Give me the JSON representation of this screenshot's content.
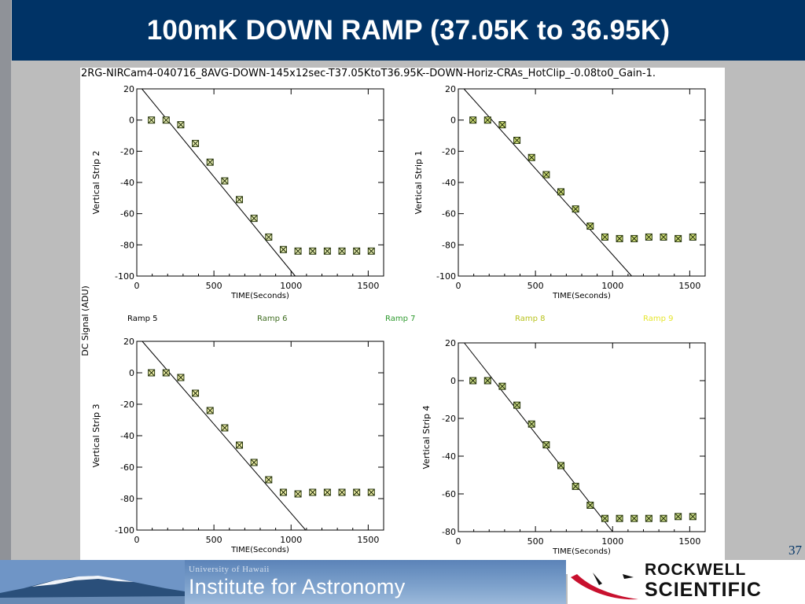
{
  "slide": {
    "title": "100mK DOWN RAMP (37.05K to 36.95K)",
    "page_number": "37"
  },
  "figure": {
    "header": "2RG-NIRCam4-040716_8AVG-DOWN-145x12sec-T37.05KtoT36.95K--DOWN-Horiz-CRAs_HotClip_-0.08to0_Gain-1.",
    "shared_ylabel": "DC Signal (ADU)",
    "legend": [
      {
        "label": "Ramp 5",
        "color": "#000000"
      },
      {
        "label": "Ramp 6",
        "color": "#3d6b1e"
      },
      {
        "label": "Ramp 7",
        "color": "#2e9a2e"
      },
      {
        "label": "Ramp 8",
        "color": "#b8c21c"
      },
      {
        "label": "Ramp 9",
        "color": "#e6e62e"
      }
    ],
    "legend_placement": "center row between panels"
  },
  "chart_data": [
    {
      "type": "scatter",
      "xlabel": "TIME(Seconds)",
      "ylabel": "Vertical Strip 2",
      "xlim": [
        0,
        1600
      ],
      "ylim": [
        -100,
        20
      ],
      "xticks": [
        0,
        500,
        1000,
        1500
      ],
      "yticks": [
        20,
        0,
        -20,
        -40,
        -60,
        -80,
        -100
      ],
      "x": [
        95,
        190,
        285,
        380,
        475,
        570,
        665,
        760,
        855,
        950,
        1045,
        1140,
        1235,
        1330,
        1425,
        1520
      ],
      "y": [
        0,
        0,
        -3,
        -15,
        -27,
        -39,
        -51,
        -63,
        -75,
        -83,
        -84,
        -84,
        -84,
        -84,
        -84,
        -84
      ],
      "fit_line": {
        "x": [
          0,
          1060
        ],
        "y": [
          24,
          -104
        ]
      }
    },
    {
      "type": "scatter",
      "xlabel": "TIME(Seconds)",
      "ylabel": "Vertical Strip 1",
      "xlim": [
        0,
        1600
      ],
      "ylim": [
        -100,
        20
      ],
      "xticks": [
        0,
        500,
        1000,
        1500
      ],
      "yticks": [
        20,
        0,
        -20,
        -40,
        -60,
        -80,
        -100
      ],
      "x": [
        95,
        190,
        285,
        380,
        475,
        570,
        665,
        760,
        855,
        950,
        1045,
        1140,
        1235,
        1330,
        1425,
        1520
      ],
      "y": [
        0,
        0,
        -3,
        -13,
        -24,
        -35,
        -46,
        -57,
        -68,
        -75,
        -76,
        -76,
        -75,
        -75,
        -76,
        -75
      ],
      "fit_line": {
        "x": [
          0,
          1160
        ],
        "y": [
          24,
          -104
        ]
      }
    },
    {
      "type": "scatter",
      "xlabel": "TIME(Seconds)",
      "ylabel": "Vertical Strip 3",
      "xlim": [
        0,
        1600
      ],
      "ylim": [
        -100,
        20
      ],
      "xticks": [
        0,
        500,
        1000,
        1500
      ],
      "yticks": [
        20,
        0,
        -20,
        -40,
        -60,
        -80,
        -100
      ],
      "x": [
        95,
        190,
        285,
        380,
        475,
        570,
        665,
        760,
        855,
        950,
        1045,
        1140,
        1235,
        1330,
        1425,
        1520
      ],
      "y": [
        0,
        0,
        -3,
        -13,
        -24,
        -35,
        -46,
        -57,
        -68,
        -76,
        -77,
        -76,
        -76,
        -76,
        -76,
        -76
      ],
      "fit_line": {
        "x": [
          0,
          1130
        ],
        "y": [
          24,
          -104
        ]
      }
    },
    {
      "type": "scatter",
      "xlabel": "TIME(Seconds)",
      "ylabel": "Vertical Strip 4",
      "xlim": [
        0,
        1600
      ],
      "ylim": [
        -80,
        20
      ],
      "xticks": [
        0,
        500,
        1000,
        1500
      ],
      "yticks": [
        20,
        0,
        -20,
        -40,
        -60,
        -80
      ],
      "x": [
        95,
        190,
        285,
        380,
        475,
        570,
        665,
        760,
        855,
        950,
        1045,
        1140,
        1235,
        1330,
        1425,
        1520
      ],
      "y": [
        0,
        0,
        -3,
        -13,
        -23,
        -34,
        -45,
        -56,
        -66,
        -73,
        -73,
        -73,
        -73,
        -73,
        -72,
        -72
      ],
      "fit_line": {
        "x": [
          0,
          1000
        ],
        "y": [
          24,
          -80
        ]
      }
    }
  ],
  "footer": {
    "university": "University of Hawaii",
    "institute": "Institute for Astronomy",
    "company_line1": "ROCKWELL",
    "company_line2": "SCIENTIFIC",
    "colors": {
      "footer_blue": "#5b83b8",
      "logo_red": "#c8102e"
    }
  }
}
